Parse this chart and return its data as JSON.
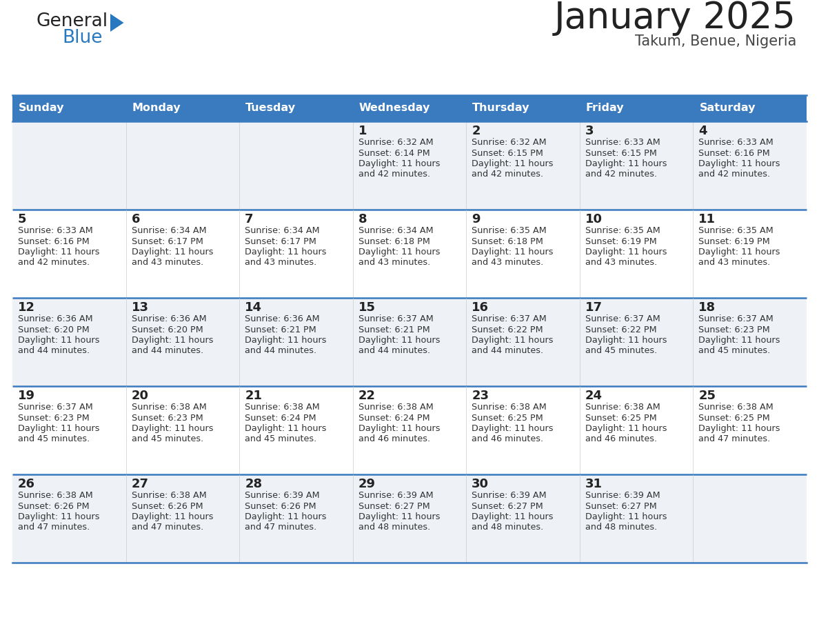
{
  "title": "January 2025",
  "subtitle": "Takum, Benue, Nigeria",
  "header_bg": "#3a7abf",
  "header_text_color": "#ffffff",
  "row_bg_odd": "#eef2f7",
  "row_bg_even": "#ffffff",
  "day_headers": [
    "Sunday",
    "Monday",
    "Tuesday",
    "Wednesday",
    "Thursday",
    "Friday",
    "Saturday"
  ],
  "title_color": "#222222",
  "subtitle_color": "#444444",
  "day_number_color": "#222222",
  "cell_text_color": "#333333",
  "divider_color": "#3a7abf",
  "logo_general_color": "#222222",
  "logo_blue_color": "#2878c0",
  "calendar_data": [
    [
      null,
      null,
      null,
      {
        "day": 1,
        "sunrise": "6:32 AM",
        "sunset": "6:14 PM",
        "hours": 11,
        "minutes": 42
      },
      {
        "day": 2,
        "sunrise": "6:32 AM",
        "sunset": "6:15 PM",
        "hours": 11,
        "minutes": 42
      },
      {
        "day": 3,
        "sunrise": "6:33 AM",
        "sunset": "6:15 PM",
        "hours": 11,
        "minutes": 42
      },
      {
        "day": 4,
        "sunrise": "6:33 AM",
        "sunset": "6:16 PM",
        "hours": 11,
        "minutes": 42
      }
    ],
    [
      {
        "day": 5,
        "sunrise": "6:33 AM",
        "sunset": "6:16 PM",
        "hours": 11,
        "minutes": 42
      },
      {
        "day": 6,
        "sunrise": "6:34 AM",
        "sunset": "6:17 PM",
        "hours": 11,
        "minutes": 43
      },
      {
        "day": 7,
        "sunrise": "6:34 AM",
        "sunset": "6:17 PM",
        "hours": 11,
        "minutes": 43
      },
      {
        "day": 8,
        "sunrise": "6:34 AM",
        "sunset": "6:18 PM",
        "hours": 11,
        "minutes": 43
      },
      {
        "day": 9,
        "sunrise": "6:35 AM",
        "sunset": "6:18 PM",
        "hours": 11,
        "minutes": 43
      },
      {
        "day": 10,
        "sunrise": "6:35 AM",
        "sunset": "6:19 PM",
        "hours": 11,
        "minutes": 43
      },
      {
        "day": 11,
        "sunrise": "6:35 AM",
        "sunset": "6:19 PM",
        "hours": 11,
        "minutes": 43
      }
    ],
    [
      {
        "day": 12,
        "sunrise": "6:36 AM",
        "sunset": "6:20 PM",
        "hours": 11,
        "minutes": 44
      },
      {
        "day": 13,
        "sunrise": "6:36 AM",
        "sunset": "6:20 PM",
        "hours": 11,
        "minutes": 44
      },
      {
        "day": 14,
        "sunrise": "6:36 AM",
        "sunset": "6:21 PM",
        "hours": 11,
        "minutes": 44
      },
      {
        "day": 15,
        "sunrise": "6:37 AM",
        "sunset": "6:21 PM",
        "hours": 11,
        "minutes": 44
      },
      {
        "day": 16,
        "sunrise": "6:37 AM",
        "sunset": "6:22 PM",
        "hours": 11,
        "minutes": 44
      },
      {
        "day": 17,
        "sunrise": "6:37 AM",
        "sunset": "6:22 PM",
        "hours": 11,
        "minutes": 45
      },
      {
        "day": 18,
        "sunrise": "6:37 AM",
        "sunset": "6:23 PM",
        "hours": 11,
        "minutes": 45
      }
    ],
    [
      {
        "day": 19,
        "sunrise": "6:37 AM",
        "sunset": "6:23 PM",
        "hours": 11,
        "minutes": 45
      },
      {
        "day": 20,
        "sunrise": "6:38 AM",
        "sunset": "6:23 PM",
        "hours": 11,
        "minutes": 45
      },
      {
        "day": 21,
        "sunrise": "6:38 AM",
        "sunset": "6:24 PM",
        "hours": 11,
        "minutes": 45
      },
      {
        "day": 22,
        "sunrise": "6:38 AM",
        "sunset": "6:24 PM",
        "hours": 11,
        "minutes": 46
      },
      {
        "day": 23,
        "sunrise": "6:38 AM",
        "sunset": "6:25 PM",
        "hours": 11,
        "minutes": 46
      },
      {
        "day": 24,
        "sunrise": "6:38 AM",
        "sunset": "6:25 PM",
        "hours": 11,
        "minutes": 46
      },
      {
        "day": 25,
        "sunrise": "6:38 AM",
        "sunset": "6:25 PM",
        "hours": 11,
        "minutes": 47
      }
    ],
    [
      {
        "day": 26,
        "sunrise": "6:38 AM",
        "sunset": "6:26 PM",
        "hours": 11,
        "minutes": 47
      },
      {
        "day": 27,
        "sunrise": "6:38 AM",
        "sunset": "6:26 PM",
        "hours": 11,
        "minutes": 47
      },
      {
        "day": 28,
        "sunrise": "6:39 AM",
        "sunset": "6:26 PM",
        "hours": 11,
        "minutes": 47
      },
      {
        "day": 29,
        "sunrise": "6:39 AM",
        "sunset": "6:27 PM",
        "hours": 11,
        "minutes": 48
      },
      {
        "day": 30,
        "sunrise": "6:39 AM",
        "sunset": "6:27 PM",
        "hours": 11,
        "minutes": 48
      },
      {
        "day": 31,
        "sunrise": "6:39 AM",
        "sunset": "6:27 PM",
        "hours": 11,
        "minutes": 48
      },
      null
    ]
  ]
}
